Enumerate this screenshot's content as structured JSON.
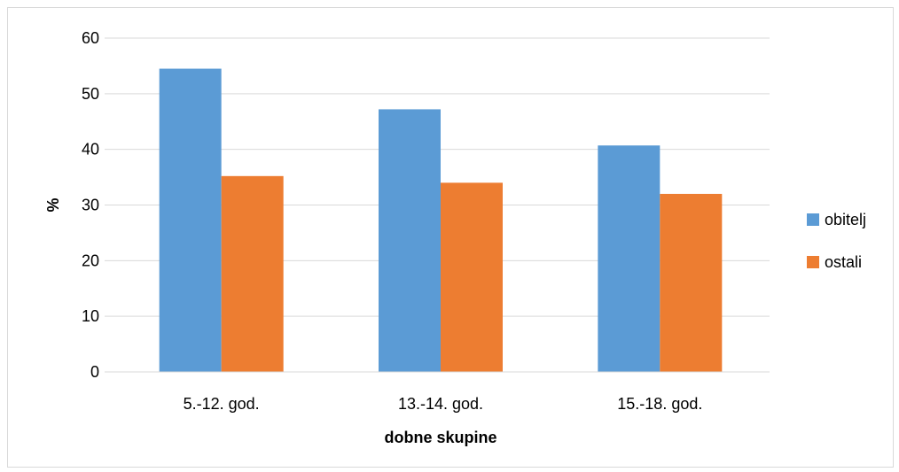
{
  "chart_data": {
    "type": "bar",
    "categories": [
      "5.-12. god.",
      "13.-14. god.",
      "15.-18. god."
    ],
    "series": [
      {
        "name": "obitelj",
        "values": [
          54.5,
          47.2,
          40.7
        ],
        "color": "#5b9bd5"
      },
      {
        "name": "ostali",
        "values": [
          35.2,
          34.0,
          32.0
        ],
        "color": "#ed7d31"
      }
    ],
    "title": "",
    "xlabel": "dobne skupine",
    "ylabel": "%",
    "ylim": [
      0,
      60
    ],
    "yticks": [
      0,
      10,
      20,
      30,
      40,
      50,
      60
    ],
    "grid": true,
    "legend_position": "right"
  }
}
